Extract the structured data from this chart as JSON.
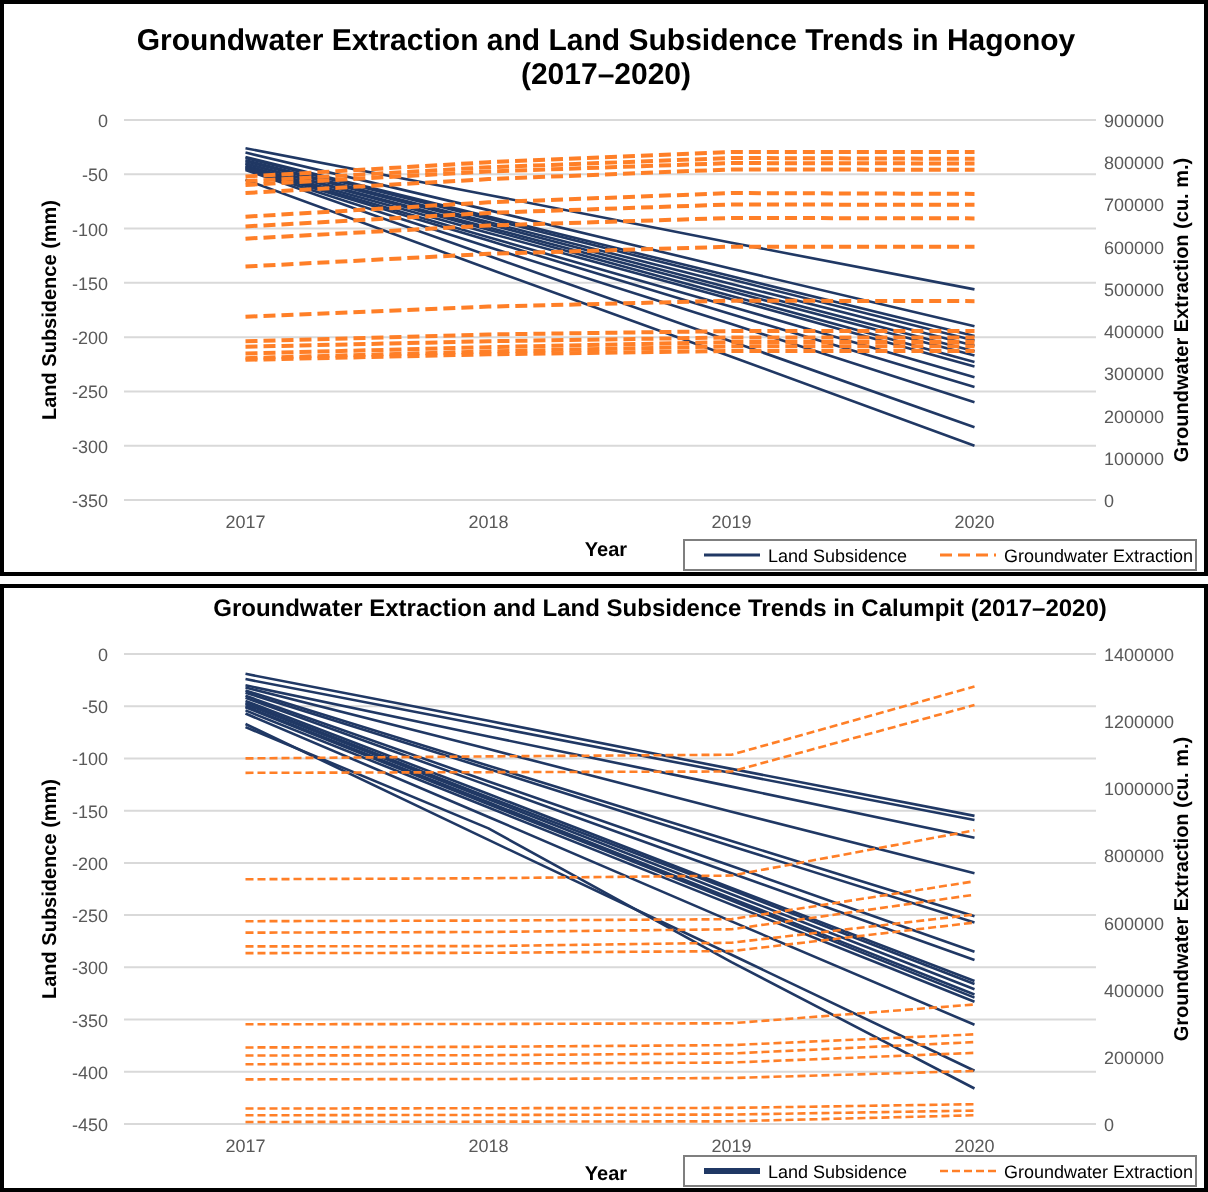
{
  "chart_data": [
    {
      "type": "line",
      "title": "Groundwater Extraction and Land Subsidence Trends in Hagonoy (2017–2020)",
      "xlabel": "Year",
      "ylabel": "Land Subsidence (mm)",
      "y2label": "Groundwater Extraction (cu. m.)",
      "categories": [
        "2017",
        "2018",
        "2019",
        "2020"
      ],
      "ylim": [
        -350,
        0
      ],
      "yticks": [
        -350,
        -300,
        -250,
        -200,
        -150,
        -100,
        -50,
        0
      ],
      "y2lim": [
        0,
        900000
      ],
      "y2ticks": [
        0,
        100000,
        200000,
        300000,
        400000,
        500000,
        600000,
        700000,
        800000,
        900000
      ],
      "grid": "y",
      "legend": "bottom right",
      "marker": "none",
      "series": [
        {
          "name": "Land Subsidence",
          "color": "#203864",
          "line_style": "solid",
          "values": [
            -26,
            -69,
            -113,
            -156
          ]
        },
        {
          "color": "#203864",
          "line_style": "solid",
          "values": [
            -30,
            -83,
            -137,
            -190
          ]
        },
        {
          "color": "#203864",
          "line_style": "solid",
          "values": [
            -34,
            -89,
            -144,
            -199
          ]
        },
        {
          "color": "#203864",
          "line_style": "solid",
          "values": [
            -35,
            -91,
            -147,
            -203
          ]
        },
        {
          "color": "#203864",
          "line_style": "solid",
          "values": [
            -37,
            -94,
            -151,
            -208
          ]
        },
        {
          "color": "#203864",
          "line_style": "solid",
          "values": [
            -38,
            -96,
            -155,
            -213
          ]
        },
        {
          "color": "#203864",
          "line_style": "solid",
          "values": [
            -40,
            -99,
            -158,
            -217
          ]
        },
        {
          "color": "#203864",
          "line_style": "solid",
          "values": [
            -40,
            -101,
            -162,
            -223
          ]
        },
        {
          "color": "#203864",
          "line_style": "solid",
          "values": [
            -42,
            -104,
            -165,
            -227
          ]
        },
        {
          "color": "#203864",
          "line_style": "solid",
          "values": [
            -43,
            -108,
            -172,
            -237
          ]
        },
        {
          "color": "#203864",
          "line_style": "solid",
          "values": [
            -44,
            -111,
            -179,
            -246
          ]
        },
        {
          "color": "#203864",
          "line_style": "solid",
          "values": [
            -45,
            -117,
            -188,
            -260
          ]
        },
        {
          "color": "#203864",
          "line_style": "solid",
          "values": [
            -46,
            -125,
            -204,
            -283
          ]
        },
        {
          "color": "#203864",
          "line_style": "solid",
          "values": [
            -55,
            -137,
            -218,
            -300
          ]
        },
        {
          "name": "Groundwater Extraction",
          "color": "#ff7f27",
          "line_style": "dashed",
          "axis": "y2",
          "values": [
            766000,
            800000,
            824000,
            824000
          ]
        },
        {
          "color": "#ff7f27",
          "line_style": "dashed",
          "axis": "y2",
          "values": [
            755000,
            788000,
            810000,
            808000
          ]
        },
        {
          "color": "#ff7f27",
          "line_style": "dashed",
          "axis": "y2",
          "values": [
            746000,
            778000,
            798000,
            797000
          ]
        },
        {
          "color": "#ff7f27",
          "line_style": "dashed",
          "axis": "y2",
          "values": [
            727000,
            760000,
            783000,
            782000
          ]
        },
        {
          "color": "#ff7f27",
          "line_style": "dashed",
          "axis": "y2",
          "values": [
            671000,
            705000,
            727000,
            725000
          ]
        },
        {
          "color": "#ff7f27",
          "line_style": "dashed",
          "axis": "y2",
          "values": [
            648000,
            680000,
            700000,
            699000
          ]
        },
        {
          "color": "#ff7f27",
          "line_style": "dashed",
          "axis": "y2",
          "values": [
            619000,
            650000,
            668000,
            667000
          ]
        },
        {
          "color": "#ff7f27",
          "line_style": "dashed",
          "axis": "y2",
          "values": [
            553000,
            583000,
            600000,
            600000
          ]
        },
        {
          "color": "#ff7f27",
          "line_style": "dashed",
          "axis": "y2",
          "values": [
            434000,
            458000,
            472000,
            471000
          ]
        },
        {
          "color": "#ff7f27",
          "line_style": "dashed",
          "axis": "y2",
          "values": [
            376000,
            392000,
            400000,
            400000
          ]
        },
        {
          "color": "#ff7f27",
          "line_style": "dashed",
          "axis": "y2",
          "values": [
            363000,
            376000,
            385000,
            385000
          ]
        },
        {
          "color": "#ff7f27",
          "line_style": "dashed",
          "axis": "y2",
          "values": [
            347000,
            362000,
            374000,
            374000
          ]
        },
        {
          "color": "#ff7f27",
          "line_style": "dashed",
          "axis": "y2",
          "values": [
            336000,
            352000,
            364000,
            364000
          ]
        },
        {
          "color": "#ff7f27",
          "line_style": "dashed",
          "axis": "y2",
          "values": [
            332000,
            345000,
            353000,
            353000
          ]
        }
      ]
    },
    {
      "type": "line",
      "title": "Groundwater Extraction and Land Subsidence Trends in Calumpit (2017–2020)",
      "xlabel": "Year",
      "ylabel": "Land Subsidence (mm)",
      "y2label": "Groundwater Extraction (cu. m.)",
      "categories": [
        "2017",
        "2018",
        "2019",
        "2020"
      ],
      "ylim": [
        -450,
        0
      ],
      "yticks": [
        -450,
        -400,
        -350,
        -300,
        -250,
        -200,
        -150,
        -100,
        -50,
        0
      ],
      "y2lim": [
        0,
        1400000
      ],
      "y2ticks": [
        0,
        200000,
        400000,
        600000,
        800000,
        1000000,
        1200000,
        1400000
      ],
      "grid": "y",
      "legend": "bottom right",
      "marker": "none",
      "series": [
        {
          "name": "Land Subsidence",
          "color": "#203864",
          "line_style": "solid",
          "values": [
            -19,
            -64,
            -110,
            -155
          ]
        },
        {
          "color": "#203864",
          "line_style": "solid",
          "values": [
            -24,
            -69,
            -114,
            -159
          ]
        },
        {
          "color": "#203864",
          "line_style": "solid",
          "values": [
            -30,
            -79,
            -127,
            -176
          ]
        },
        {
          "color": "#203864",
          "line_style": "solid",
          "values": [
            -32,
            -91,
            -151,
            -210
          ]
        },
        {
          "color": "#203864",
          "line_style": "solid",
          "values": [
            -35,
            -107,
            -179,
            -251
          ]
        },
        {
          "color": "#203864",
          "line_style": "solid",
          "values": [
            -37,
            -110,
            -184,
            -257
          ]
        },
        {
          "color": "#203864",
          "line_style": "solid",
          "values": [
            -40,
            -122,
            -203,
            -285
          ]
        },
        {
          "color": "#203864",
          "line_style": "solid",
          "values": [
            -42,
            -126,
            -210,
            -293
          ]
        },
        {
          "color": "#203864",
          "line_style": "solid",
          "values": [
            -45,
            -134,
            -224,
            -313
          ]
        },
        {
          "color": "#203864",
          "line_style": "solid",
          "values": [
            -47,
            -137,
            -226,
            -316
          ]
        },
        {
          "color": "#203864",
          "line_style": "solid",
          "values": [
            -48,
            -139,
            -230,
            -321
          ]
        },
        {
          "color": "#203864",
          "line_style": "solid",
          "values": [
            -50,
            -142,
            -234,
            -326
          ]
        },
        {
          "color": "#203864",
          "line_style": "solid",
          "values": [
            -51,
            -144,
            -236,
            -329
          ]
        },
        {
          "color": "#203864",
          "line_style": "solid",
          "values": [
            -54,
            -147,
            -240,
            -333
          ]
        },
        {
          "color": "#203864",
          "line_style": "solid",
          "values": [
            -57,
            -156,
            -256,
            -355
          ]
        },
        {
          "color": "#203864",
          "line_style": "solid",
          "values": [
            -67,
            -178,
            -288,
            -399
          ]
        },
        {
          "color": "#203864",
          "line_style": "solid",
          "values": [
            -70,
            -167,
            -295,
            -416
          ]
        },
        {
          "name": "Groundwater Extraction",
          "color": "#ff7f27",
          "line_style": "dashed",
          "axis": "y2",
          "values": [
            1089000,
            1095000,
            1100000,
            1303000
          ]
        },
        {
          "color": "#ff7f27",
          "line_style": "dashed",
          "axis": "y2",
          "values": [
            1046000,
            1048000,
            1050000,
            1248000
          ]
        },
        {
          "color": "#ff7f27",
          "line_style": "dashed",
          "axis": "y2",
          "values": [
            729000,
            732000,
            740000,
            875000
          ]
        },
        {
          "color": "#ff7f27",
          "line_style": "dashed",
          "axis": "y2",
          "values": [
            604000,
            606000,
            610000,
            723000
          ]
        },
        {
          "color": "#ff7f27",
          "line_style": "dashed",
          "axis": "y2",
          "values": [
            570000,
            572000,
            580000,
            683000
          ]
        },
        {
          "color": "#ff7f27",
          "line_style": "dashed",
          "axis": "y2",
          "values": [
            529000,
            530000,
            540000,
            624000
          ]
        },
        {
          "color": "#ff7f27",
          "line_style": "dashed",
          "axis": "y2",
          "values": [
            509000,
            510000,
            515000,
            600000
          ]
        },
        {
          "color": "#ff7f27",
          "line_style": "dashed",
          "axis": "y2",
          "values": [
            297000,
            298000,
            300000,
            356000
          ]
        },
        {
          "color": "#ff7f27",
          "line_style": "dashed",
          "axis": "y2",
          "values": [
            228000,
            230000,
            235000,
            267000
          ]
        },
        {
          "color": "#ff7f27",
          "line_style": "dashed",
          "axis": "y2",
          "values": [
            204000,
            205000,
            210000,
            244000
          ]
        },
        {
          "color": "#ff7f27",
          "line_style": "dashed",
          "axis": "y2",
          "values": [
            178000,
            180000,
            183000,
            212000
          ]
        },
        {
          "color": "#ff7f27",
          "line_style": "dashed",
          "axis": "y2",
          "values": [
            133000,
            134000,
            137000,
            158000
          ]
        },
        {
          "color": "#ff7f27",
          "line_style": "dashed",
          "axis": "y2",
          "values": [
            46000,
            47000,
            48000,
            59000
          ]
        },
        {
          "color": "#ff7f27",
          "line_style": "dashed",
          "axis": "y2",
          "values": [
            26000,
            27000,
            28000,
            40000
          ]
        },
        {
          "color": "#ff7f27",
          "line_style": "dashed",
          "axis": "y2",
          "values": [
            6000,
            7000,
            8000,
            26000
          ]
        }
      ]
    }
  ]
}
